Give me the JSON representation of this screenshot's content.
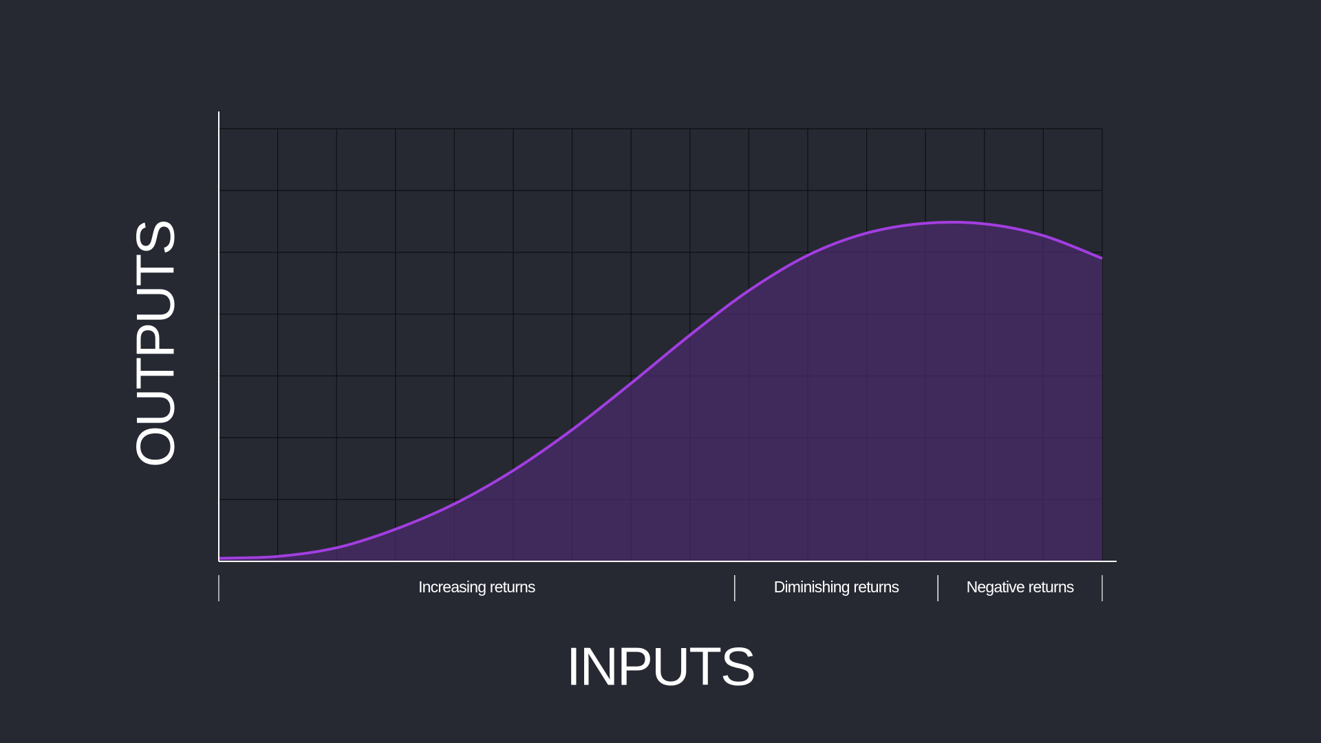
{
  "chart_data": {
    "type": "area",
    "x_label": "INPUTS",
    "y_label": "OUTPUTS",
    "x": [
      0,
      1,
      2,
      3,
      4,
      5,
      6,
      7,
      8,
      9,
      10,
      11,
      12,
      13,
      14,
      15
    ],
    "values": [
      0.05,
      0.08,
      0.22,
      0.52,
      0.93,
      1.47,
      2.13,
      2.88,
      3.66,
      4.38,
      4.95,
      5.31,
      5.47,
      5.46,
      5.27,
      4.9
    ],
    "color": "#a23ee0",
    "fill": "#4a2a6a",
    "xlim": [
      0,
      15
    ],
    "ylim": [
      0,
      7
    ],
    "xticks": [
      0,
      1,
      2,
      3,
      4,
      5,
      6,
      7,
      8,
      9,
      10,
      11,
      12,
      13,
      14,
      15
    ],
    "yticks": [
      0,
      1,
      2,
      3,
      4,
      5,
      6,
      7
    ],
    "grid": true,
    "regions": [
      {
        "label": "Increasing returns",
        "from": 0,
        "to": 8.76
      },
      {
        "label": "Diminishing returns",
        "from": 8.76,
        "to": 12.21
      },
      {
        "label": "Negative returns",
        "from": 12.21,
        "to": 15
      }
    ]
  }
}
